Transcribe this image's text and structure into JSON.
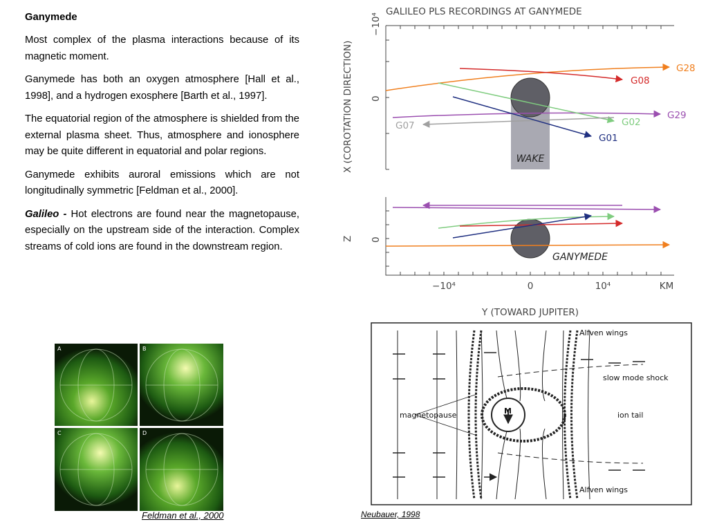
{
  "heading": "Ganymede",
  "paragraphs": [
    "Most complex of the plasma interactions because of its magnetic moment.",
    "Ganymede has both an oxygen atmosphere [Hall et al., 1998], and a hydrogen exosphere [Barth et al., 1997].",
    "The equatorial region of the atmosphere is shielded from the external plasma sheet.  Thus, atmosphere and ionosphere may be quite different in equatorial and polar regions.",
    "Ganymede exhibits auroral emissions which are not longitudinally symmetric [Feldman et al., 2000]."
  ],
  "galileo_paragraph": {
    "lead": "Galileo -",
    "body": " Hot electrons are found near the magnetopause, especially on the upstream side of the interaction.  Complex streams of cold ions are found in the downstream region."
  },
  "aurora_figure": {
    "panels": [
      "A",
      "B",
      "C",
      "D"
    ],
    "caption": "Feldman et al., 2000"
  },
  "trajectory_figure": {
    "title": "GALILEO PLS RECORDINGS AT GANYMEDE",
    "x_axis_label": "X (COROTATION DIRECTION)",
    "x_ticks": [
      "−10⁴",
      "0"
    ],
    "z_axis_label": "Z",
    "z_ticks": [
      "0"
    ],
    "y_axis_label": "Y (TOWARD JUPITER)",
    "y_ticks": [
      "−10⁴",
      "0",
      "10⁴",
      "KM"
    ],
    "flybys": [
      {
        "name": "G28",
        "color": "#f07f1e"
      },
      {
        "name": "G08",
        "color": "#d42a2a"
      },
      {
        "name": "G29",
        "color": "#9b4fb0"
      },
      {
        "name": "G02",
        "color": "#7fcc7f"
      },
      {
        "name": "G07",
        "color": "#a0a0a0"
      },
      {
        "name": "G01",
        "color": "#1f2f80"
      }
    ],
    "wake_label": "WAKE",
    "moon_label": "GANYMEDE"
  },
  "interaction_figure": {
    "labels": [
      "Alfven wings",
      "slow mode shock",
      "magnetopause",
      "ion tail",
      "M",
      "Alfven wings"
    ],
    "caption": "Neubauer, 1998"
  }
}
